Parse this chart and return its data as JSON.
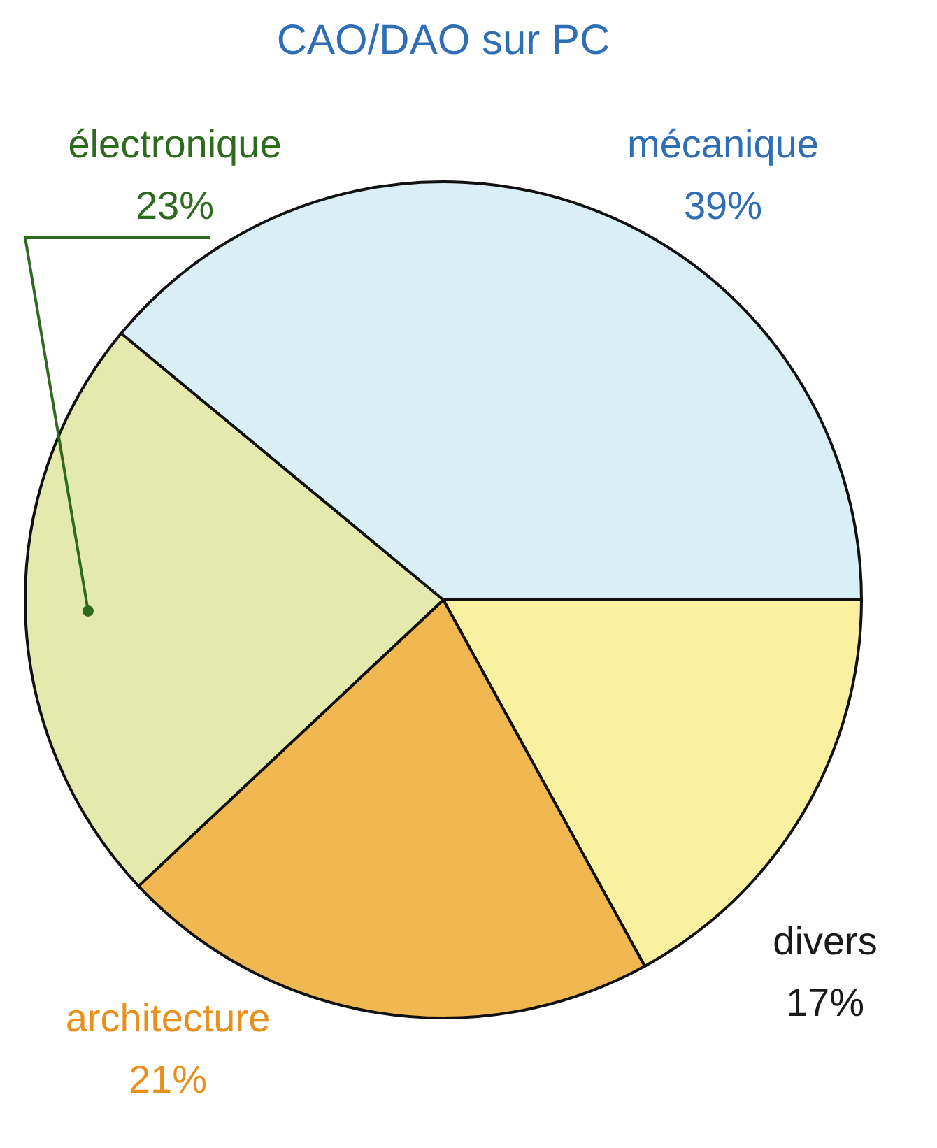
{
  "chart_data": {
    "type": "pie",
    "title": "CAO/DAO sur PC",
    "categories": [
      "divers",
      "architecture",
      "électronique",
      "mécanique"
    ],
    "values": [
      17,
      21,
      23,
      39
    ],
    "colors": [
      "#f9f1a0",
      "#f1b751",
      "#e4e9ae",
      "#d9eef5"
    ],
    "value_labels": [
      "17%",
      "21%",
      "23%",
      "39%"
    ],
    "legend": false
  }
}
